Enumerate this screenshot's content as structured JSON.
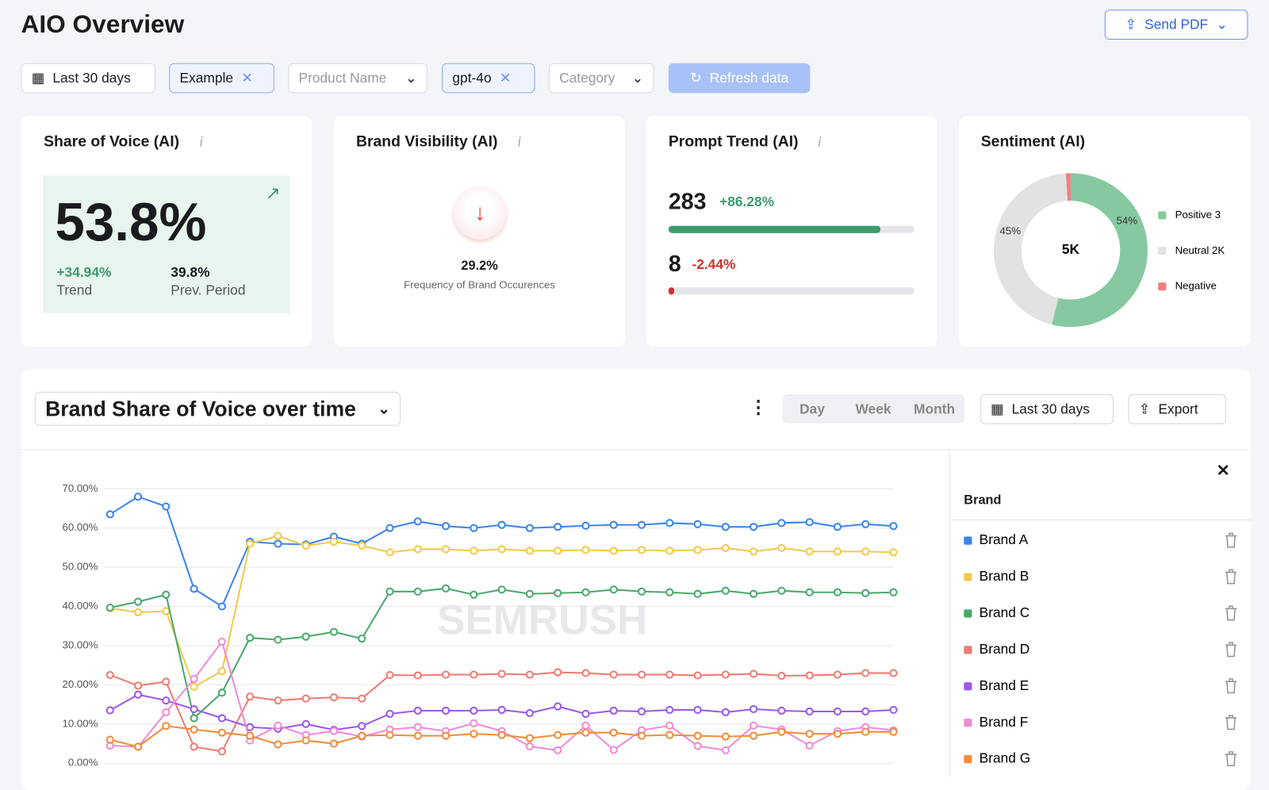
{
  "header": {
    "title": "AIO Overview",
    "send_pdf": "Send PDF"
  },
  "filters": [
    "Last 30 days",
    "Example",
    "Product Name",
    "gpt-4o",
    "Category"
  ],
  "refresh": "Refresh data",
  "cards": {
    "share_of_voice": {
      "title": "Share of Voice (AI)",
      "value": "53.8%",
      "trend": "+34.94%",
      "trend_label": "Trend",
      "prev": "39.8%",
      "prev_label": "Prev. Period"
    },
    "brand_visibility": {
      "title": "Brand Visibility (AI)",
      "value": "29.2%",
      "caption": "Frequency of Brand Occurences"
    },
    "prompt_trend": {
      "title": "Prompt Trend (AI)",
      "rows": [
        {
          "value": "283",
          "change": "+86.28%"
        },
        {
          "value": "8",
          "change": "-2.44%"
        }
      ]
    }
  },
  "section": {
    "title": "Brand Share of Voice over time",
    "tabs": [
      "Day",
      "Week",
      "Month"
    ],
    "range": "Last 30 days",
    "export": "Export",
    "panel_title": "Brand",
    "watermark": "SEMRUSH"
  },
  "chart_data": [
    {
      "type": "line",
      "categories": [
        null,
        null,
        null,
        null,
        null,
        null,
        null,
        null,
        null,
        null,
        null,
        null,
        null,
        null,
        null,
        null,
        null,
        null,
        null,
        null,
        null,
        null,
        null,
        null,
        null,
        null,
        null,
        null,
        null
      ],
      "ylim": [
        0,
        70
      ],
      "yticks": [
        {
          "value": 0,
          "label": "0.00%"
        },
        {
          "value": 10,
          "label": "10.00%"
        },
        {
          "value": 20,
          "label": "20.00%"
        },
        {
          "value": 30,
          "label": "30.00%"
        },
        {
          "value": 40,
          "label": "40.00%"
        },
        {
          "value": 50,
          "label": "50.00%"
        },
        {
          "value": 60,
          "label": "60.00%"
        },
        {
          "value": 70,
          "label": "70.00%"
        }
      ],
      "grid": true,
      "series": [
        {
          "name": "Brand A",
          "color": "#3b86e8",
          "values": [
            63.5,
            68,
            65.5,
            44.5,
            40,
            56.5,
            56,
            55.8,
            57.8,
            56,
            60,
            61.7,
            60.5,
            60,
            60.8,
            60,
            60.3,
            60.6,
            60.8,
            60.8,
            61.3,
            61,
            60.3,
            60.3,
            61.3,
            61.5,
            60.3,
            61,
            60.5
          ]
        },
        {
          "name": "Brand B",
          "color": "#f2c94c",
          "values": [
            39.5,
            38.5,
            38.8,
            19.5,
            23.5,
            56,
            58,
            55.5,
            56.5,
            55.5,
            53.8,
            54.6,
            54.6,
            54.2,
            54.6,
            54.2,
            54.2,
            54.4,
            54.2,
            54.4,
            54.2,
            54.4,
            54.9,
            54,
            54.9,
            54,
            54,
            54,
            53.8
          ]
        },
        {
          "name": "Brand C",
          "color": "#4aa96c",
          "values": [
            39.7,
            41.2,
            43,
            11.5,
            18,
            32,
            31.5,
            32.3,
            33.5,
            31.8,
            43.8,
            43.8,
            44.6,
            43,
            44.3,
            43.2,
            43.4,
            43.6,
            44.3,
            43.8,
            43.6,
            43.2,
            44,
            43.2,
            44,
            43.6,
            43.6,
            43.4,
            43.6
          ]
        },
        {
          "name": "Brand D",
          "color": "#ec7c74",
          "values": [
            22.5,
            19.8,
            20.8,
            4.2,
            3,
            17,
            16,
            16.5,
            16.8,
            16.5,
            22.5,
            22.4,
            22.6,
            22.6,
            22.8,
            22.6,
            23.2,
            23,
            22.6,
            22.6,
            22.6,
            22.4,
            22.6,
            22.8,
            22.3,
            22.4,
            22.6,
            23,
            23
          ]
        },
        {
          "name": "Brand E",
          "color": "#9b59e8",
          "values": [
            13.5,
            17.5,
            16,
            13.8,
            11.5,
            9.2,
            8.8,
            10,
            8.5,
            9.5,
            12.6,
            13.4,
            13.4,
            13.4,
            13.6,
            12.8,
            14.5,
            12.6,
            13.4,
            13.2,
            13.6,
            13.6,
            13,
            13.8,
            13.4,
            13.2,
            13.2,
            13.2,
            13.6
          ]
        },
        {
          "name": "Brand F",
          "color": "#f08ad8",
          "values": [
            4.5,
            4.2,
            13,
            21.5,
            31,
            5.8,
            9.6,
            7.2,
            8.2,
            6.8,
            8.6,
            9.2,
            8.2,
            10.2,
            8.2,
            4.3,
            3.3,
            9.6,
            3.4,
            8.4,
            9.6,
            4.4,
            3.3,
            9.6,
            8.6,
            4.5,
            8.2,
            9.2,
            8.4
          ]
        },
        {
          "name": "Brand G",
          "color": "#ef8c3a",
          "values": [
            6,
            4.2,
            9.5,
            8.6,
            7.8,
            7,
            4.8,
            5.8,
            5,
            7,
            7.2,
            7,
            7,
            7.5,
            7.2,
            6.4,
            7.2,
            7.8,
            7.8,
            7,
            7.2,
            7,
            6.8,
            7,
            8,
            7.5,
            7.5,
            8,
            8
          ]
        }
      ]
    },
    {
      "type": "pie",
      "title": "Sentiment (AI)",
      "center_label": "5K",
      "categories": [
        "Positive 3",
        "Neutral 2K",
        "Negative"
      ],
      "values": [
        54,
        45,
        1
      ],
      "value_labels": [
        "54%",
        "45%",
        null
      ],
      "colors": [
        "#86c9a0",
        "#e2e2e2",
        "#f08080"
      ]
    }
  ]
}
